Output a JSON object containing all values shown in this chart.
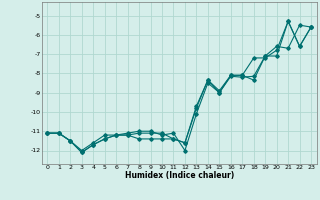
{
  "xlabel": "Humidex (Indice chaleur)",
  "xlim": [
    -0.5,
    23.5
  ],
  "ylim": [
    -12.7,
    -4.3
  ],
  "yticks": [
    -12,
    -11,
    -10,
    -9,
    -8,
    -7,
    -6,
    -5
  ],
  "xticks": [
    0,
    1,
    2,
    3,
    4,
    5,
    6,
    7,
    8,
    9,
    10,
    11,
    12,
    13,
    14,
    15,
    16,
    17,
    18,
    19,
    20,
    21,
    22,
    23
  ],
  "bg_color": "#d5eeea",
  "grid_color": "#b0d8d0",
  "line_color": "#007070",
  "line1_y": [
    -11.1,
    -11.1,
    -11.5,
    -12.1,
    -11.7,
    -11.4,
    -11.2,
    -11.2,
    -11.1,
    -11.1,
    -11.1,
    -11.4,
    -11.6,
    -9.7,
    -8.35,
    -8.9,
    -8.1,
    -8.1,
    -8.35,
    -7.1,
    -7.1,
    -5.3,
    -6.6,
    -5.6
  ],
  "line2_y": [
    -11.1,
    -11.1,
    -11.5,
    -12.1,
    -11.7,
    -11.4,
    -11.2,
    -11.2,
    -11.4,
    -11.4,
    -11.4,
    -11.4,
    -11.6,
    -9.8,
    -8.35,
    -9.0,
    -8.1,
    -8.1,
    -7.2,
    -7.2,
    -6.8,
    -5.3,
    -6.6,
    -5.6
  ],
  "line3_y": [
    -11.1,
    -11.1,
    -11.5,
    -12.0,
    -11.6,
    -11.2,
    -11.2,
    -11.1,
    -11.0,
    -11.0,
    -11.2,
    -11.1,
    -12.0,
    -10.1,
    -8.5,
    -9.0,
    -8.15,
    -8.2,
    -8.15,
    -7.1,
    -6.6,
    -6.7,
    -5.5,
    -5.6
  ]
}
